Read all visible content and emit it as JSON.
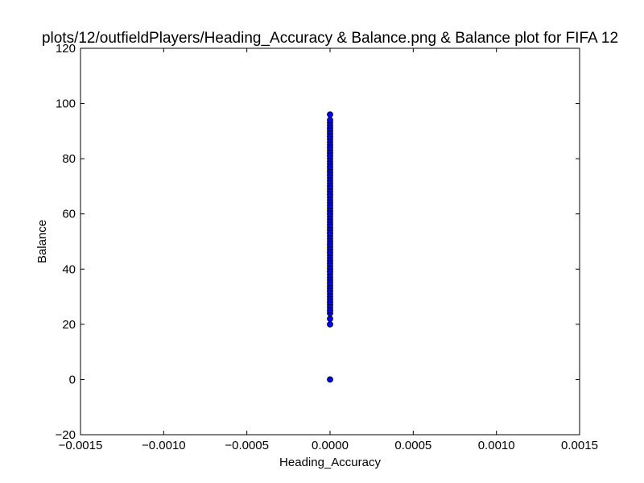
{
  "chart_data": {
    "type": "scatter",
    "title": "plots/12/outfieldPlayers/Heading_Accuracy & Balance.png & Balance plot for FIFA 12",
    "xlabel": "Heading_Accuracy",
    "ylabel": "Balance",
    "xlim": [
      -0.0015,
      0.0015
    ],
    "ylim": [
      -20,
      120
    ],
    "xticks": [
      -0.0015,
      -0.001,
      -0.0005,
      0.0,
      0.0005,
      0.001,
      0.0015
    ],
    "xtick_labels": [
      "−0.0015",
      "−0.0010",
      "−0.0005",
      "0.0000",
      "0.0005",
      "0.0010",
      "0.0015"
    ],
    "yticks": [
      -20,
      0,
      20,
      40,
      60,
      80,
      100,
      120
    ],
    "ytick_labels": [
      "−20",
      "0",
      "20",
      "40",
      "60",
      "80",
      "100",
      "120"
    ],
    "grid": false,
    "marker_color": "#0000ff",
    "marker_edge_color": "#000000",
    "x": [
      0,
      0,
      0,
      0,
      0,
      0,
      0,
      0,
      0,
      0,
      0,
      0,
      0,
      0,
      0,
      0,
      0,
      0,
      0,
      0,
      0,
      0,
      0,
      0,
      0,
      0,
      0,
      0,
      0,
      0,
      0,
      0,
      0,
      0,
      0,
      0,
      0,
      0,
      0,
      0,
      0,
      0,
      0,
      0,
      0,
      0,
      0,
      0,
      0,
      0,
      0,
      0,
      0,
      0,
      0,
      0,
      0,
      0,
      0,
      0,
      0,
      0,
      0,
      0,
      0,
      0,
      0,
      0,
      0,
      0,
      0,
      0,
      0,
      0,
      0
    ],
    "y": [
      0,
      20,
      22,
      24,
      25,
      26,
      27,
      28,
      29,
      30,
      31,
      32,
      33,
      34,
      35,
      36,
      37,
      38,
      39,
      40,
      41,
      42,
      43,
      44,
      45,
      46,
      47,
      48,
      49,
      50,
      51,
      52,
      53,
      54,
      55,
      56,
      57,
      58,
      59,
      60,
      61,
      62,
      63,
      64,
      65,
      66,
      67,
      68,
      69,
      70,
      71,
      72,
      73,
      74,
      75,
      76,
      77,
      78,
      79,
      80,
      81,
      82,
      83,
      84,
      85,
      86,
      87,
      88,
      89,
      90,
      91,
      92,
      93,
      94,
      96
    ]
  }
}
